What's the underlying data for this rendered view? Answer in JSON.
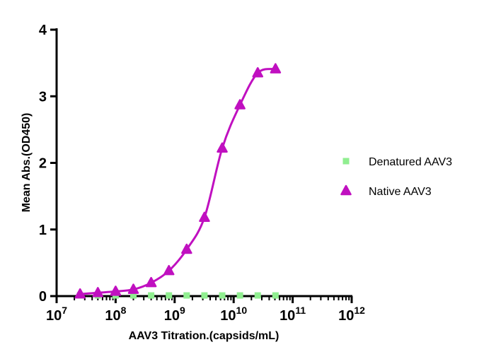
{
  "chart_data": {
    "type": "scatter",
    "title": "",
    "xlabel": "AAV3 Titration.(capsids/mL)",
    "ylabel": "Mean Abs.(OD450)",
    "x_scale": "log10",
    "xlim": [
      10000000,
      1000000000000
    ],
    "ylim": [
      0,
      4
    ],
    "x_ticks": [
      {
        "base": "10",
        "exp": "7"
      },
      {
        "base": "10",
        "exp": "8"
      },
      {
        "base": "10",
        "exp": "9"
      },
      {
        "base": "10",
        "exp": "10"
      },
      {
        "base": "10",
        "exp": "11"
      },
      {
        "base": "10",
        "exp": "12"
      }
    ],
    "y_ticks": [
      "0",
      "1",
      "2",
      "3",
      "4"
    ],
    "legend_position": "right",
    "series": [
      {
        "name": "Denatured AAV3",
        "marker": "square",
        "color": "#90ee90",
        "x": [
          25000000,
          50000000,
          100000000,
          200000000,
          400000000,
          800000000,
          1600000000,
          3200000000,
          6400000000,
          12800000000,
          25600000000,
          51200000000
        ],
        "y": [
          0.01,
          0.01,
          0.01,
          0.01,
          0.01,
          0.01,
          0.01,
          0.01,
          0.01,
          0.01,
          0.01,
          0.01
        ]
      },
      {
        "name": "Native AAV3",
        "marker": "triangle",
        "color": "#c010c0",
        "fit_curve": true,
        "x": [
          25000000,
          50000000,
          100000000,
          200000000,
          400000000,
          800000000,
          1600000000,
          3200000000,
          6400000000,
          12800000000,
          25600000000,
          51200000000
        ],
        "y": [
          0.03,
          0.05,
          0.07,
          0.1,
          0.2,
          0.38,
          0.7,
          1.18,
          2.22,
          2.87,
          3.35,
          3.41
        ]
      }
    ]
  }
}
